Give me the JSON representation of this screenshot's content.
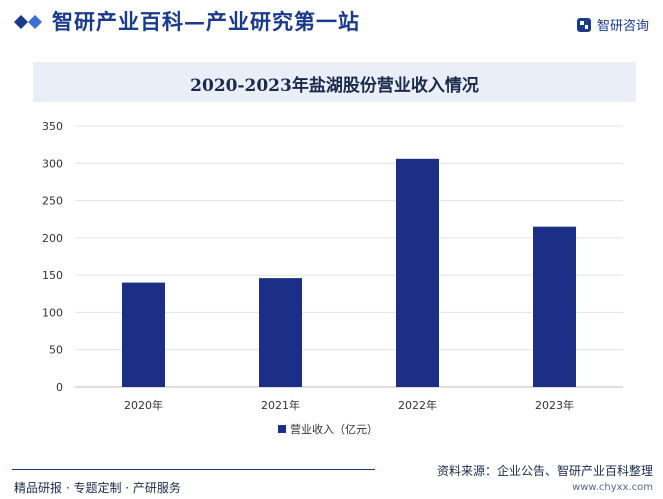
{
  "header": {
    "site_title": "智研产业百科—产业研究第一站",
    "logo_text": "智研咨询"
  },
  "colors": {
    "bar": "#1b2f86",
    "brand": "#1b3a8a",
    "title_band": "#e9eef7",
    "grid": "#e3e3e3"
  },
  "chart_data": {
    "type": "bar",
    "title": "2020-2023年盐湖股份营业收入情况",
    "categories": [
      "2020年",
      "2021年",
      "2022年",
      "2023年"
    ],
    "series": [
      {
        "name": "营业收入（亿元）",
        "values": [
          140,
          146,
          306,
          215
        ]
      }
    ],
    "ylim": [
      0,
      350
    ],
    "yticks": [
      0,
      50,
      100,
      150,
      200,
      250,
      300,
      350
    ],
    "grid": true,
    "legend_position": "bottom"
  },
  "footer": {
    "left_text": "精品研报 · 专题定制 · 产研服务",
    "source_text": "资料来源：企业公告、智研产业百科整理",
    "url_text": "www.chyxx.com"
  }
}
